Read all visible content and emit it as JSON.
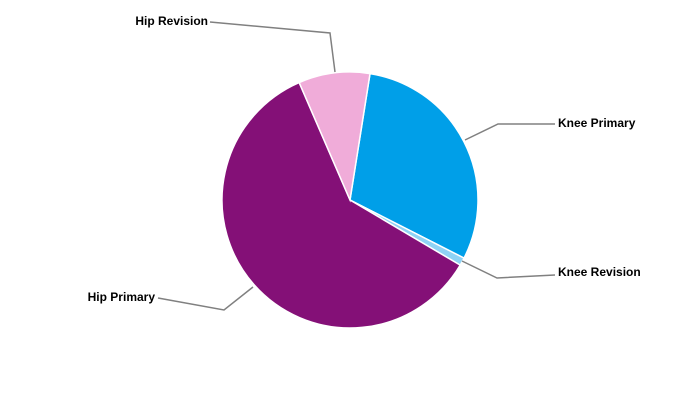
{
  "chart_data": {
    "type": "pie",
    "categories": [
      "Knee Primary",
      "Knee Revision",
      "Hip Primary",
      "Hip Revision"
    ],
    "values": [
      30,
      1,
      60,
      9
    ],
    "colors": [
      "#009fe8",
      "#8fd3f5",
      "#841077",
      "#f0acd9"
    ]
  }
}
